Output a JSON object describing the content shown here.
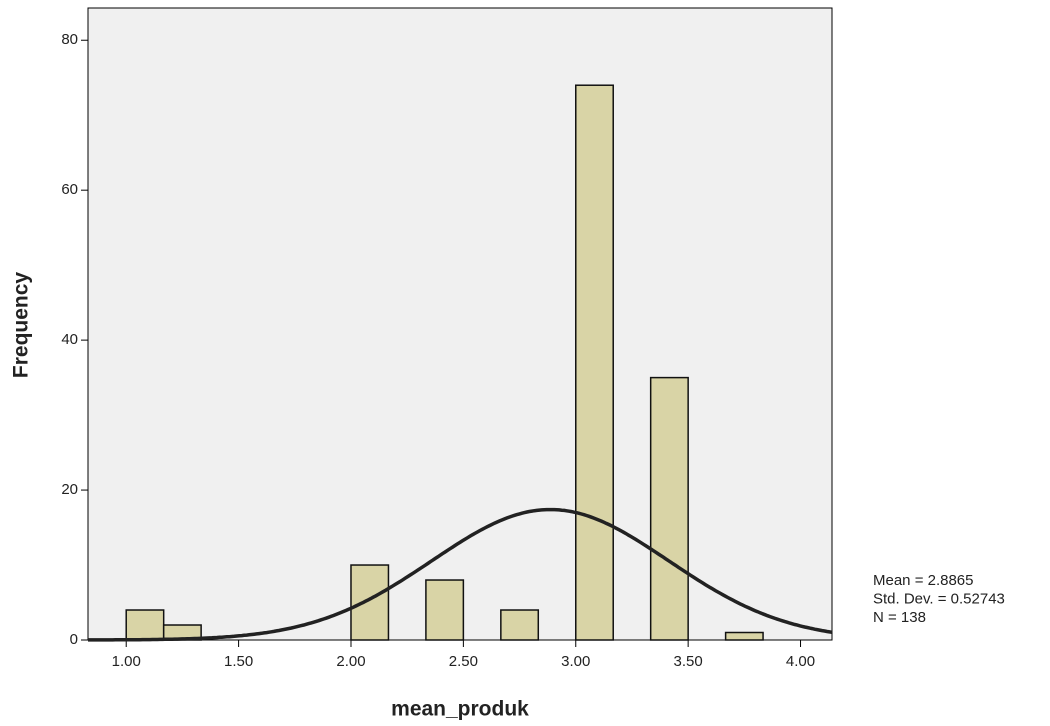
{
  "chart_data": {
    "type": "histogram",
    "x_label": "mean_produk",
    "y_label": "Frequency",
    "bins": [
      1,
      1.1667,
      1.3333,
      1.5,
      1.6667,
      1.8333,
      2,
      2.1667,
      2.3333,
      2.5,
      2.6667,
      2.8333,
      3,
      3.1667,
      3.3333,
      3.5,
      3.6667,
      3.8333
    ],
    "values": [
      4,
      2,
      0,
      0,
      0,
      0,
      10,
      0,
      8,
      0,
      4,
      0,
      74,
      0,
      35,
      0,
      1
    ],
    "color": "#d9d4a6",
    "xlim": [
      0.83,
      4.14
    ],
    "ylim": [
      0,
      84.3
    ],
    "xticks": [
      {
        "value": 1,
        "label": "1.00"
      },
      {
        "value": 1.5,
        "label": "1.50"
      },
      {
        "value": 2,
        "label": "2.00"
      },
      {
        "value": 2.5,
        "label": "2.50"
      },
      {
        "value": 3,
        "label": "3.00"
      },
      {
        "value": 3.5,
        "label": "3.50"
      },
      {
        "value": 4,
        "label": "4.00"
      }
    ],
    "yticks": [
      0,
      20,
      40,
      60,
      80
    ],
    "stats": [
      {
        "label": "Mean = 2.8865",
        "value": 2.8865
      },
      {
        "label": "Std. Dev. = 0.52743",
        "value": 0.52743
      },
      {
        "label": "N = 138",
        "value": 138
      }
    ],
    "normal_curve": true
  }
}
